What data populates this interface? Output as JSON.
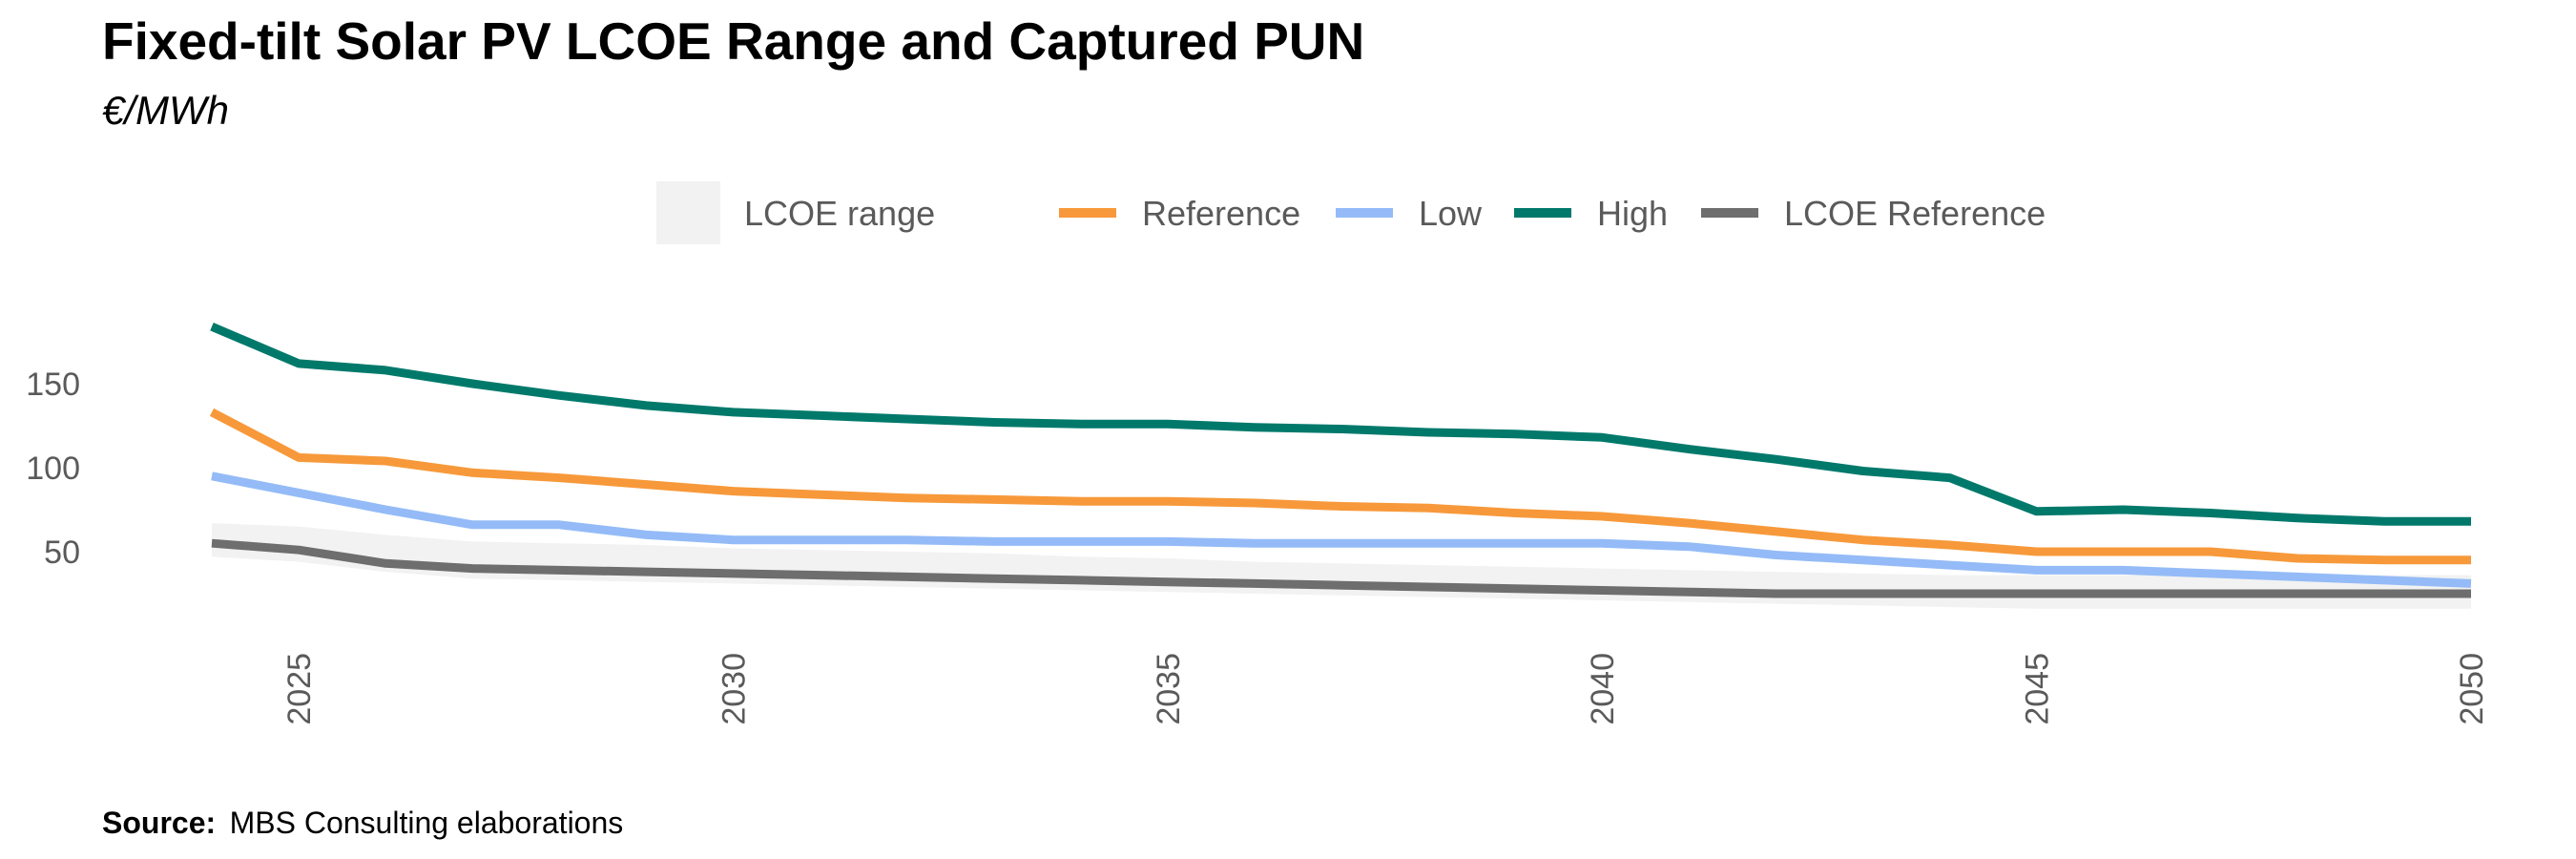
{
  "title": "Fixed-tilt Solar PV LCOE Range and Captured PUN",
  "subtitle": "€/MWh",
  "source_label": "Source:",
  "source_text": "MBS Consulting elaborations",
  "colors": {
    "reference": "#F7993A",
    "low": "#94BBF7",
    "high": "#00796B",
    "lcoe_reference": "#6E6E6E",
    "lcoe_range": "#F2F2F2"
  },
  "chart_data": {
    "type": "line",
    "x": [
      2024,
      2025,
      2026,
      2027,
      2028,
      2029,
      2030,
      2031,
      2032,
      2033,
      2034,
      2035,
      2036,
      2037,
      2038,
      2039,
      2040,
      2041,
      2042,
      2043,
      2044,
      2045,
      2046,
      2047,
      2048,
      2049,
      2050
    ],
    "xlim": [
      2024,
      2050
    ],
    "ylim": [
      0,
      190
    ],
    "x_ticks": [
      "2025",
      "2030",
      "2035",
      "2040",
      "2045",
      "2050"
    ],
    "y_ticks": [
      "50",
      "100",
      "150"
    ],
    "legend": {
      "placement": "top",
      "range_label": "LCOE range"
    },
    "lcoe_range": {
      "name": "LCOE range",
      "upper": [
        67,
        65,
        60,
        56,
        55,
        54,
        52,
        51,
        50,
        49,
        47,
        46,
        44,
        43,
        42,
        41,
        40,
        39,
        38,
        37,
        36,
        36,
        36,
        36,
        36,
        36,
        36
      ],
      "lower": [
        47,
        44,
        38,
        34,
        33,
        32,
        31,
        30,
        29,
        28,
        27,
        26,
        25,
        24,
        23,
        22,
        21,
        20,
        19,
        18,
        17,
        16,
        16,
        16,
        16,
        16,
        16
      ]
    },
    "series": [
      {
        "name": "Reference",
        "values": [
          133,
          106,
          104,
          97,
          94,
          90,
          86,
          84,
          82,
          81,
          80,
          80,
          79,
          77,
          76,
          73,
          71,
          67,
          62,
          57,
          54,
          50,
          50,
          50,
          46,
          45,
          45
        ]
      },
      {
        "name": "Low",
        "values": [
          95,
          85,
          75,
          66,
          66,
          60,
          57,
          57,
          57,
          56,
          56,
          56,
          55,
          55,
          55,
          55,
          55,
          53,
          48,
          45,
          42,
          39,
          39,
          37,
          35,
          33,
          31
        ]
      },
      {
        "name": "High",
        "values": [
          184,
          162,
          158,
          150,
          143,
          137,
          133,
          131,
          129,
          127,
          126,
          126,
          124,
          123,
          121,
          120,
          118,
          111,
          105,
          98,
          94,
          74,
          75,
          73,
          70,
          68,
          68
        ]
      },
      {
        "name": "LCOE Reference",
        "values": [
          55,
          51,
          43,
          40,
          39,
          38,
          37,
          36,
          35,
          34,
          33,
          32,
          31,
          30,
          29,
          28,
          27,
          26,
          25,
          25,
          25,
          25,
          25,
          25,
          25,
          25,
          25
        ]
      }
    ]
  }
}
